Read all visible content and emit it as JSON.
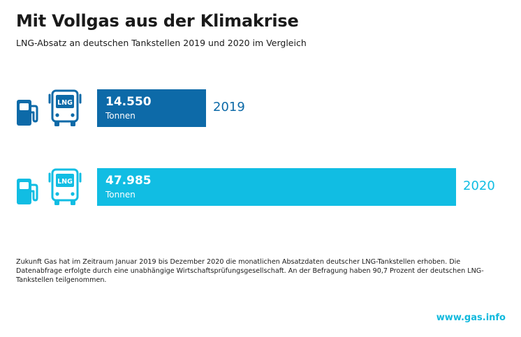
{
  "title": "Mit Vollgas aus der Klimakrise",
  "subtitle": "LNG-Absatz an deutschen Tankstellen 2019 und 2020 im Vergleich",
  "icons": {
    "pump": "fuel-pump-icon",
    "bus": "lng-bus-icon",
    "bus_label": "LNG"
  },
  "colors": {
    "bar_2019": "#0d6aa8",
    "bar_2020": "#11bde3"
  },
  "chart_data": {
    "type": "bar",
    "orientation": "horizontal",
    "title": "Mit Vollgas aus der Klimakrise",
    "subtitle": "LNG-Absatz an deutschen Tankstellen 2019 und 2020 im Vergleich",
    "categories": [
      "2019",
      "2020"
    ],
    "values": [
      14550,
      47985
    ],
    "value_labels": [
      "14.550",
      "47.985"
    ],
    "unit": "Tonnen",
    "grid": false,
    "legend": "none"
  },
  "footnote": "Zukunft Gas hat im Zeitraum Januar 2019 bis Dezember 2020 die monatlichen Absatzdaten deutscher LNG-Tankstellen erhoben. Die Datenabfrage erfolgte durch eine unabhängige Wirtschaftsprüfungsgesellschaft. An der Befragung haben 90,7 Prozent der deutschen LNG-Tankstellen teilgenommen.",
  "source": "www.gas.info"
}
